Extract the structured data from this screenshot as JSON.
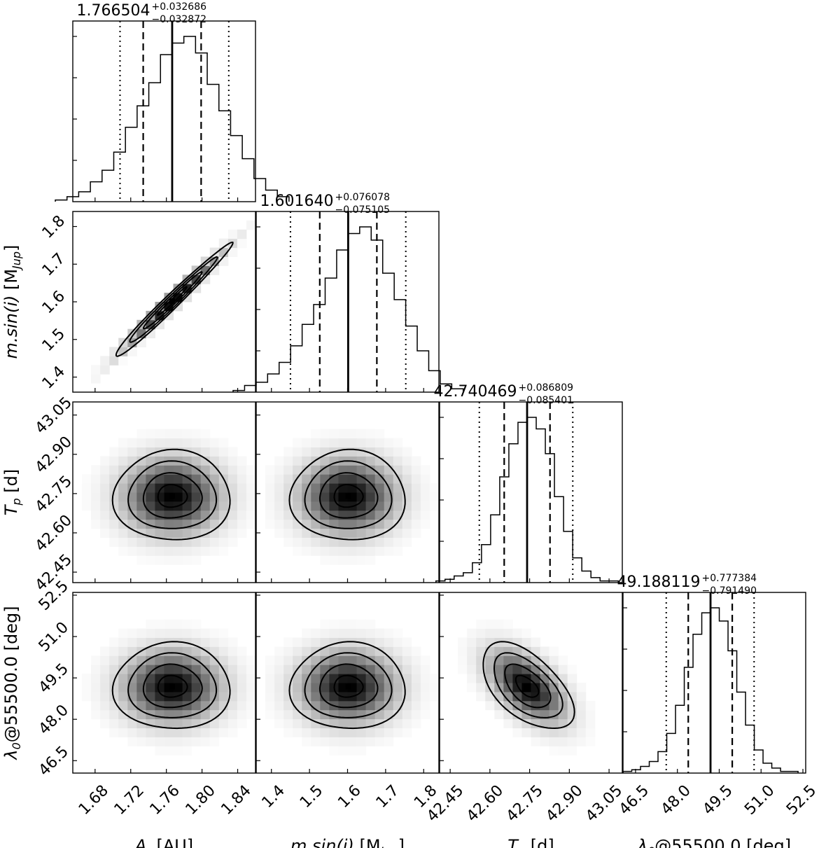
{
  "chart_data": {
    "type": "corner",
    "parameters": [
      {
        "key": "Ar",
        "label": "A",
        "label_sub": "r",
        "label_unit": " [AU]",
        "median": 1.766504,
        "err_plus": 0.032686,
        "err_minus": 0.032872,
        "title_value": "1.766504",
        "title_plus": "+0.032686",
        "title_minus": "−0.032872",
        "range": [
          1.655,
          1.86
        ],
        "ticks": [
          1.68,
          1.72,
          1.76,
          1.8,
          1.84
        ],
        "tick_labels": [
          "1.68",
          "1.72",
          "1.76",
          "1.80",
          "1.84"
        ],
        "quantiles": {
          "outer_low": 1.708,
          "inner_low": 1.734,
          "inner_high": 1.799,
          "outer_high": 1.83
        },
        "histogram": [
          0.01,
          0.03,
          0.06,
          0.12,
          0.19,
          0.3,
          0.45,
          0.58,
          0.72,
          0.89,
          0.96,
          1.0,
          0.9,
          0.71,
          0.55,
          0.4,
          0.26,
          0.14,
          0.07,
          0.03
        ]
      },
      {
        "key": "msini",
        "label": "m.sin(i)",
        "label_sub": "",
        "label_unit": " [M",
        "label_unit_sub": "Jup",
        "label_unit_end": "]",
        "median": 1.60164,
        "err_plus": 0.076078,
        "err_minus": 0.075105,
        "title_value": "1.601640",
        "title_plus": "+0.076078",
        "title_minus": "−0.075105",
        "range": [
          1.36,
          1.84
        ],
        "ticks": [
          1.4,
          1.5,
          1.6,
          1.7,
          1.8
        ],
        "tick_labels": [
          "1.4",
          "1.5",
          "1.6",
          "1.7",
          "1.8"
        ],
        "quantiles": {
          "outer_low": 1.45,
          "inner_low": 1.527,
          "inner_high": 1.677,
          "outer_high": 1.753
        },
        "histogram": [
          0.01,
          0.04,
          0.06,
          0.11,
          0.18,
          0.28,
          0.41,
          0.53,
          0.69,
          0.86,
          0.96,
          1.0,
          0.92,
          0.72,
          0.56,
          0.4,
          0.25,
          0.13,
          0.05,
          0.02
        ]
      },
      {
        "key": "Tp",
        "label": "T",
        "label_sub": "p",
        "label_unit": " [d]",
        "median": 42.740469,
        "err_plus": 0.086809,
        "err_minus": 0.085401,
        "title_value": "42.740469",
        "title_plus": "+0.086809",
        "title_minus": "−0.085401",
        "range": [
          42.41,
          43.1
        ],
        "ticks": [
          42.45,
          42.6,
          42.75,
          42.9,
          43.05
        ],
        "tick_labels": [
          "42.45",
          "42.60",
          "42.75",
          "42.90",
          "43.05"
        ],
        "quantiles": {
          "outer_low": 42.56,
          "inner_low": 42.654,
          "inner_high": 42.827,
          "outer_high": 42.913
        },
        "histogram": [
          0.01,
          0.02,
          0.04,
          0.06,
          0.12,
          0.23,
          0.41,
          0.64,
          0.84,
          0.97,
          1.0,
          0.93,
          0.78,
          0.52,
          0.31,
          0.15,
          0.07,
          0.03,
          0.01,
          0.01
        ]
      },
      {
        "key": "lambda0",
        "label": "λ",
        "label_sub": "0",
        "label_unit": "@55500.0 [deg]",
        "median": 49.188119,
        "err_plus": 0.777384,
        "err_minus": 0.79149,
        "title_value": "49.188119",
        "title_plus": "+0.777384",
        "title_minus": "−0.791490",
        "range": [
          46.05,
          52.6
        ],
        "ticks": [
          46.5,
          48.0,
          49.5,
          51.0,
          52.5
        ],
        "tick_labels": [
          "46.5",
          "48.0",
          "49.5",
          "51.0",
          "52.5"
        ],
        "quantiles": {
          "outer_low": 47.6,
          "inner_low": 48.39,
          "inner_high": 49.967,
          "outer_high": 50.75
        },
        "histogram": [
          0.01,
          0.02,
          0.04,
          0.07,
          0.13,
          0.24,
          0.41,
          0.64,
          0.84,
          0.97,
          1.0,
          0.92,
          0.74,
          0.49,
          0.29,
          0.14,
          0.06,
          0.03,
          0.01,
          0.01
        ]
      }
    ],
    "correlations": [
      {
        "row": 1,
        "col": 0,
        "rho": 0.985
      },
      {
        "row": 2,
        "col": 0,
        "rho": 0.0
      },
      {
        "row": 2,
        "col": 1,
        "rho": 0.0
      },
      {
        "row": 3,
        "col": 0,
        "rho": 0.0
      },
      {
        "row": 3,
        "col": 1,
        "rho": 0.0
      },
      {
        "row": 3,
        "col": 2,
        "rho": -0.55
      }
    ],
    "contour_levels_sigma": [
      0.5,
      1.0,
      1.5,
      2.0
    ]
  }
}
